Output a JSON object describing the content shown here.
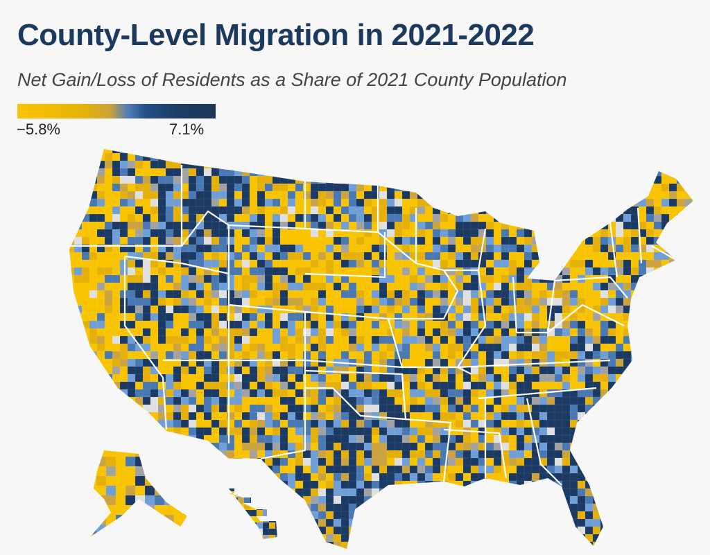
{
  "title": "County-Level Migration in 2021-2022",
  "subtitle": "Net Gain/Loss of Residents as a Share of 2021 County Population",
  "legend": {
    "min_label": "−5.8%",
    "max_label": "7.1%",
    "min_value": -5.8,
    "max_value": 7.1,
    "colors": [
      "#f8c300",
      "#e5b00a",
      "#cba340",
      "#a2a2a2",
      "#6f9fd6",
      "#4a78b3",
      "#1b3a63"
    ]
  }
}
